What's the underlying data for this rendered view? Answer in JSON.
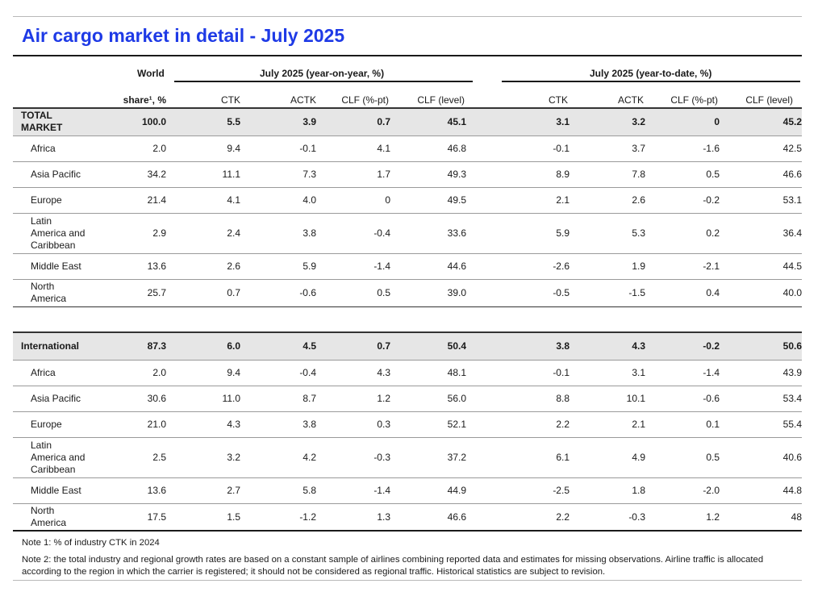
{
  "title": "Air cargo market in detail - July 2025",
  "header": {
    "world_label": "World",
    "share_label": "share¹, %",
    "group_yoy": "July 2025 (year-on-year, %)",
    "group_ytd": "July 2025 (year-to-date, %)",
    "columns": [
      "CTK",
      "ACTK",
      "CLF (%-pt)",
      "CLF (level)",
      "CTK",
      "ACTK",
      "CLF (%-pt)",
      "CLF (level)"
    ]
  },
  "sections": [
    {
      "total": {
        "label": "TOTAL MARKET",
        "cells": [
          "100.0",
          "5.5",
          "3.9",
          "0.7",
          "45.1",
          "3.1",
          "3.2",
          "0",
          "45.2"
        ]
      },
      "rows": [
        {
          "label": "Africa",
          "cells": [
            "2.0",
            "9.4",
            "-0.1",
            "4.1",
            "46.8",
            "-0.1",
            "3.7",
            "-1.6",
            "42.5"
          ]
        },
        {
          "label": "Asia Pacific",
          "cells": [
            "34.2",
            "11.1",
            "7.3",
            "1.7",
            "49.3",
            "8.9",
            "7.8",
            "0.5",
            "46.6"
          ]
        },
        {
          "label": "Europe",
          "cells": [
            "21.4",
            "4.1",
            "4.0",
            "0",
            "49.5",
            "2.1",
            "2.6",
            "-0.2",
            "53.1"
          ]
        },
        {
          "label": "Latin America and Caribbean",
          "cells": [
            "2.9",
            "2.4",
            "3.8",
            "-0.4",
            "33.6",
            "5.9",
            "5.3",
            "0.2",
            "36.4"
          ]
        },
        {
          "label": "Middle East",
          "cells": [
            "13.6",
            "2.6",
            "5.9",
            "-1.4",
            "44.6",
            "-2.6",
            "1.9",
            "-2.1",
            "44.5"
          ]
        },
        {
          "label": "North America",
          "cells": [
            "25.7",
            "0.7",
            "-0.6",
            "0.5",
            "39.0",
            "-0.5",
            "-1.5",
            "0.4",
            "40.0"
          ]
        }
      ]
    },
    {
      "total": {
        "label": "International",
        "cells": [
          "87.3",
          "6.0",
          "4.5",
          "0.7",
          "50.4",
          "3.8",
          "4.3",
          "-0.2",
          "50.6"
        ]
      },
      "rows": [
        {
          "label": "Africa",
          "cells": [
            "2.0",
            "9.4",
            "-0.4",
            "4.3",
            "48.1",
            "-0.1",
            "3.1",
            "-1.4",
            "43.9"
          ]
        },
        {
          "label": "Asia Pacific",
          "cells": [
            "30.6",
            "11.0",
            "8.7",
            "1.2",
            "56.0",
            "8.8",
            "10.1",
            "-0.6",
            "53.4"
          ]
        },
        {
          "label": "Europe",
          "cells": [
            "21.0",
            "4.3",
            "3.8",
            "0.3",
            "52.1",
            "2.2",
            "2.1",
            "0.1",
            "55.4"
          ]
        },
        {
          "label": "Latin America and Caribbean",
          "cells": [
            "2.5",
            "3.2",
            "4.2",
            "-0.3",
            "37.2",
            "6.1",
            "4.9",
            "0.5",
            "40.6"
          ]
        },
        {
          "label": "Middle East",
          "cells": [
            "13.6",
            "2.7",
            "5.8",
            "-1.4",
            "44.9",
            "-2.5",
            "1.8",
            "-2.0",
            "44.8"
          ]
        },
        {
          "label": "North America",
          "cells": [
            "17.5",
            "1.5",
            "-1.2",
            "1.3",
            "46.6",
            "2.2",
            "-0.3",
            "1.2",
            "48"
          ]
        }
      ]
    }
  ],
  "notes": {
    "note1": "Note 1: % of industry CTK in 2024",
    "note2": "Note 2: the total industry and regional growth rates are based on a constant sample of airlines combining reported data and estimates for missing observations. Airline traffic is allocated according to the region in which the carrier is registered; it should not be considered as regional traffic. Historical statistics are subject to revision."
  }
}
